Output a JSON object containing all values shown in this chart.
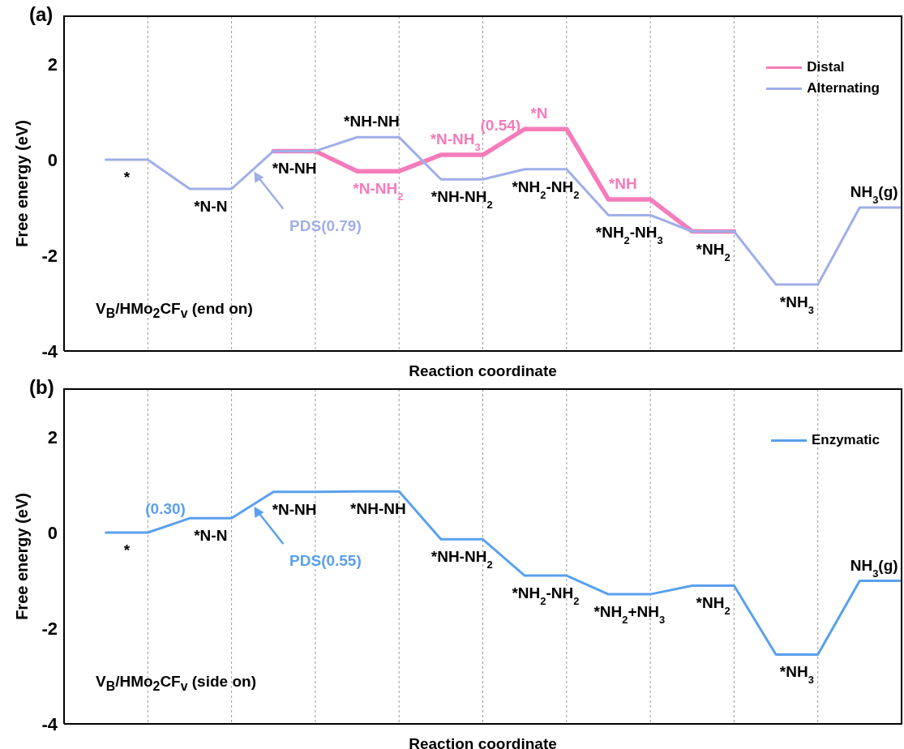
{
  "chart_data": [
    {
      "type": "line",
      "title": "(a)",
      "xlabel": "Reaction coordinate",
      "ylabel": "Free energy (eV)",
      "categories": [
        null,
        null,
        null,
        null,
        null,
        null,
        null,
        null,
        null,
        null,
        null,
        null,
        null,
        null,
        null,
        null,
        null,
        null,
        null,
        null
      ],
      "ylim": [
        -4,
        3
      ],
      "yticks": [
        -4,
        -2,
        0,
        2
      ],
      "grid": "x",
      "legend": "top right",
      "tick_labels": "y",
      "marker": "none",
      "line_style": "solid",
      "series": [
        {
          "name": "Distal",
          "color": "#f57cba",
          "values": [
            null,
            null,
            null,
            null,
            0.18,
            0.18,
            -0.24,
            -0.24,
            0.1,
            0.1,
            0.64,
            0.64,
            -0.83,
            -0.83,
            -1.5,
            -1.5,
            null,
            null,
            null,
            null
          ]
        },
        {
          "name": "Alternating",
          "color": "#a0aee8",
          "values": [
            0,
            0,
            -0.61,
            -0.61,
            0.18,
            0.18,
            0.47,
            0.47,
            -0.41,
            -0.41,
            -0.2,
            -0.2,
            -1.16,
            -1.16,
            -1.5,
            -1.5,
            -2.61,
            -2.61,
            -1.0,
            -1.0
          ]
        }
      ],
      "annotations": [
        {
          "text": "*",
          "y": 0
        },
        {
          "text": "*N-N",
          "y": -0.61
        },
        {
          "text": "*N-NH",
          "y": 0.18
        },
        {
          "text": "*NH-NH",
          "y": 0.47
        },
        {
          "text": "*N-NH$_{2}$",
          "y": -0.24
        },
        {
          "text": "*N-NH$_{3}$",
          "y": 0.1
        },
        {
          "text": "*NH-NH$_{2}$",
          "y": -0.41
        },
        {
          "text": "*N",
          "y": 0.64
        },
        {
          "text": "*NH$_{2}$-NH$_{2}$",
          "y": -0.2
        },
        {
          "text": "*NH",
          "y": -0.83
        },
        {
          "text": "*NH$_{2}$-NH$_{3}$",
          "y": -1.16
        },
        {
          "text": "*NH$_{2}$",
          "y": -1.5
        },
        {
          "text": "*NH$_{3}$",
          "y": -2.61
        },
        {
          "text": "NH$_{3}$(g)",
          "y": -1.0
        },
        "PDS(0.79)",
        {
          "text": "(0.54)",
          "y": 0.37
        },
        "V$_{B}$/HMo$_{2}$CF$_{v}$ (end on)"
      ]
    },
    {
      "type": "line",
      "title": "(b)",
      "xlabel": "Reaction coordinate",
      "ylabel": "Free energy (eV)",
      "categories": [
        null,
        null,
        null,
        null,
        null,
        null,
        null,
        null,
        null,
        null,
        null,
        null,
        null,
        null,
        null,
        null,
        null,
        null,
        null,
        null
      ],
      "ylim": [
        -4,
        3
      ],
      "yticks": [
        -4,
        -2,
        0,
        2
      ],
      "grid": "x",
      "legend": "top right",
      "tick_labels": "y",
      "marker": "none",
      "line_style": "solid",
      "series": [
        {
          "name": "Enzymatic",
          "color": "#5aa0ee",
          "values": [
            0,
            0,
            0.3,
            0.3,
            0.85,
            0.85,
            0.86,
            0.86,
            -0.14,
            -0.14,
            -0.9,
            -0.9,
            -1.29,
            -1.29,
            -1.11,
            -1.11,
            -2.55,
            -2.55,
            -1.01,
            -1.01
          ]
        }
      ],
      "annotations": [
        {
          "text": "*",
          "y": 0
        },
        {
          "text": "*N-N",
          "y": 0.3
        },
        {
          "text": "*N-NH",
          "y": 0.85
        },
        {
          "text": "*NH-NH",
          "y": 0.86
        },
        {
          "text": "*NH-NH$_{2}$",
          "y": -0.14
        },
        {
          "text": "*NH$_{2}$-NH$_{2}$",
          "y": -0.9
        },
        {
          "text": "*NH$_{2}$+NH$_{3}$",
          "y": -1.29
        },
        {
          "text": "*NH$_{2}$",
          "y": -1.11
        },
        {
          "text": "*NH$_{3}$",
          "y": -2.55
        },
        {
          "text": "NH$_{3}$(g)",
          "y": -1.01
        },
        {
          "text": "(0.30)",
          "y": 0.15
        },
        "PDS(0.55)",
        "V$_{B}$/HMo$_{2}$CF$_{v}$ (side on)"
      ]
    }
  ]
}
